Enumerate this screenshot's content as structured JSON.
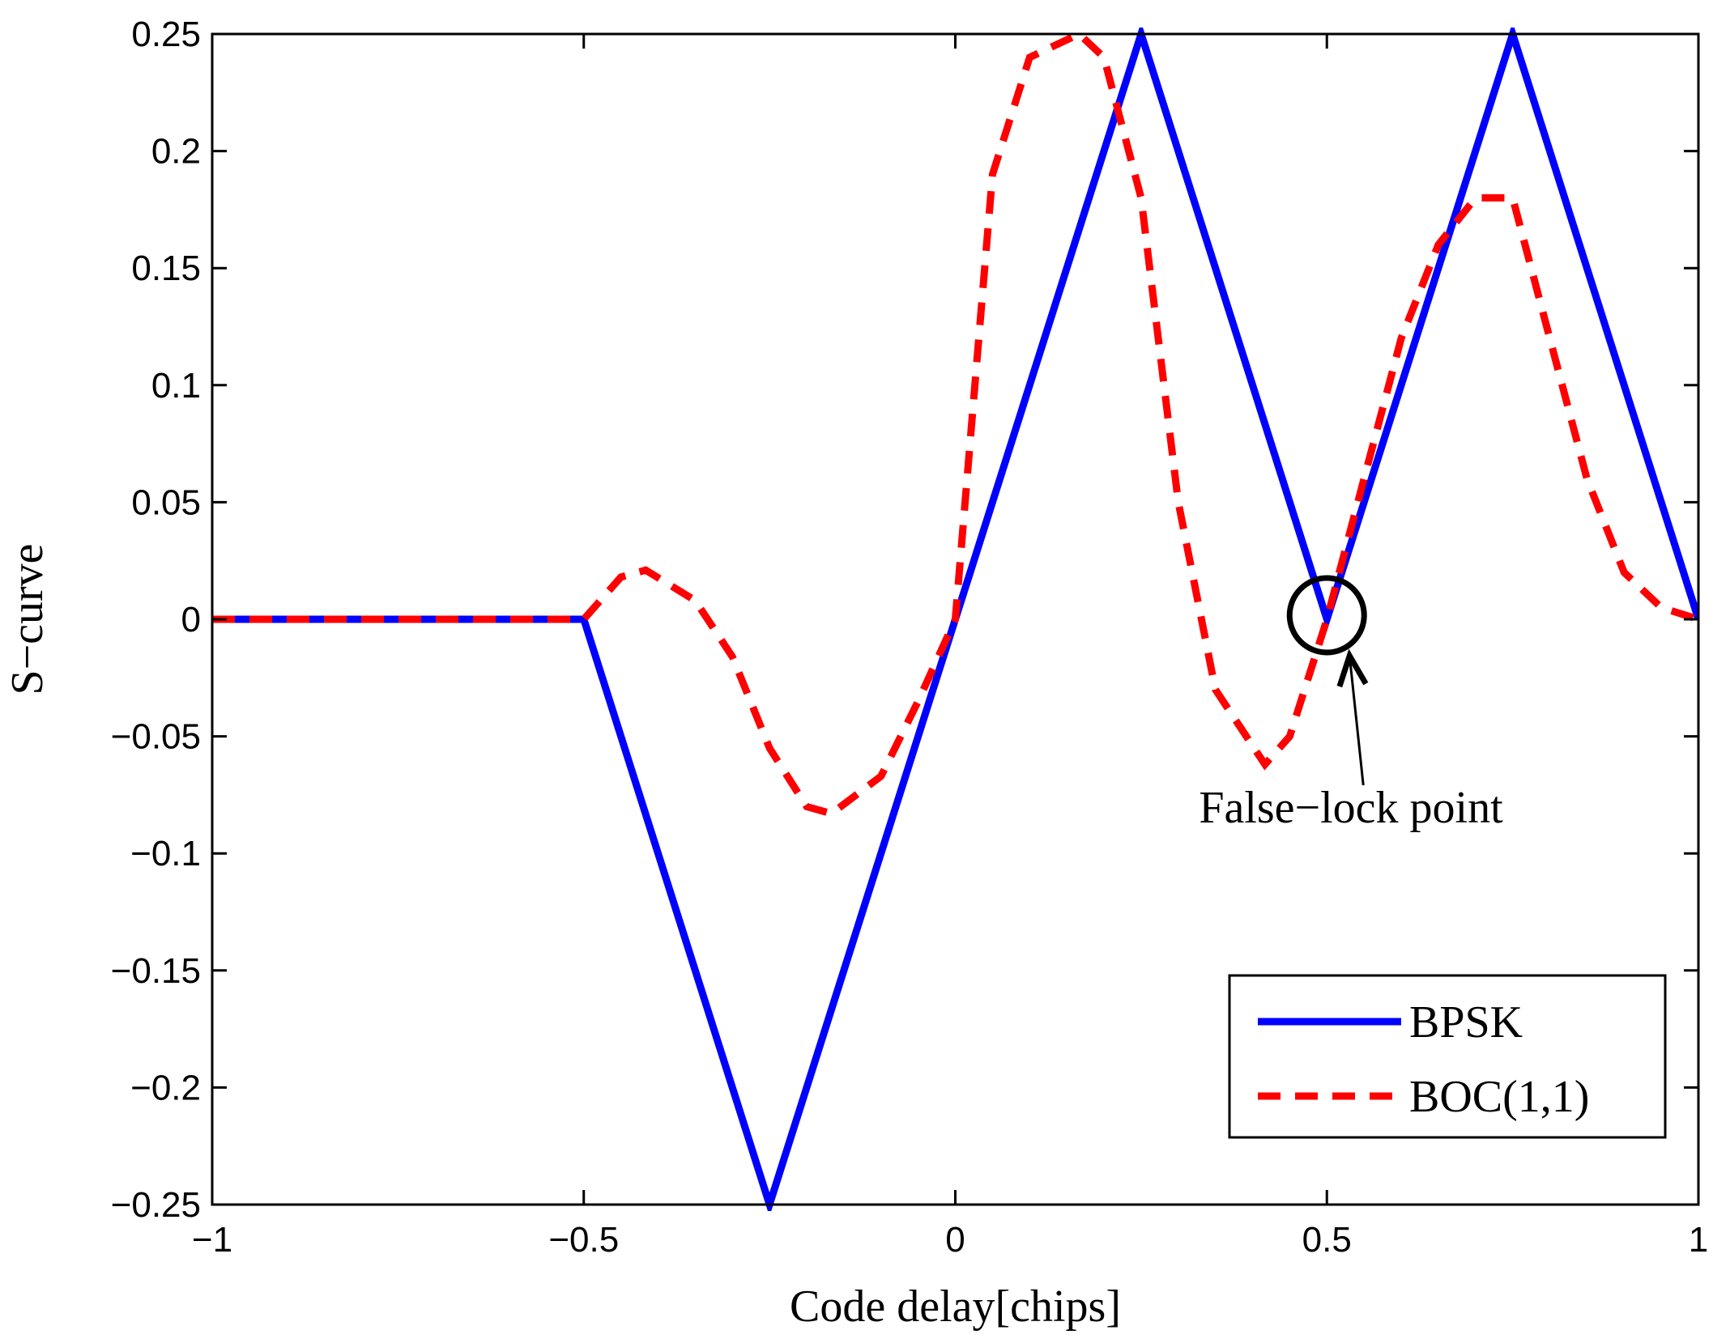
{
  "chart_data": {
    "type": "line",
    "title": "",
    "xlabel": "Code delay[chips]",
    "ylabel": "S−curve",
    "xlim": [
      -1,
      1
    ],
    "ylim": [
      -0.25,
      0.25
    ],
    "x_ticks": [
      -1,
      -0.5,
      0,
      0.5,
      1
    ],
    "x_tick_labels": [
      "−1",
      "−0.5",
      "0",
      "0.5",
      "1"
    ],
    "y_ticks": [
      -0.25,
      -0.2,
      -0.15,
      -0.1,
      -0.05,
      0,
      0.05,
      0.1,
      0.15,
      0.2,
      0.25
    ],
    "y_tick_labels": [
      "−0.25",
      "−0.2",
      "−0.15",
      "−0.1",
      "−0.05",
      "0",
      "0.05",
      "0.1",
      "0.15",
      "0.2",
      "0.25"
    ],
    "grid": false,
    "legend_position": "bottom-right",
    "series": [
      {
        "name": "BPSK",
        "color": "#0000ff",
        "style": "solid",
        "x": [
          -1,
          -0.5,
          -0.25,
          0,
          0.25,
          0.5,
          0.75,
          1
        ],
        "y": [
          0,
          0,
          -0.25,
          0,
          0.25,
          0,
          0.25,
          0
        ]
      },
      {
        "name": "BOC(1,1)",
        "color": "#ff0000",
        "style": "dashed",
        "x": [
          -1,
          -0.5,
          -0.45,
          -0.4167,
          -0.35,
          -0.3,
          -0.25,
          -0.2,
          -0.1667,
          -0.1,
          -0.05,
          0,
          0.05,
          0.1,
          0.1667,
          0.2,
          0.25,
          0.3,
          0.35,
          0.4167,
          0.45,
          0.5,
          0.55,
          0.6,
          0.65,
          0.7,
          0.75,
          0.8,
          0.85,
          0.9,
          0.95,
          1
        ],
        "y": [
          0,
          0,
          0.018,
          0.021,
          0.008,
          -0.016,
          -0.055,
          -0.08,
          -0.083,
          -0.067,
          -0.035,
          0,
          0.19,
          0.24,
          0.25,
          0.24,
          0.18,
          0.05,
          -0.03,
          -0.062,
          -0.05,
          0,
          0.06,
          0.12,
          0.16,
          0.18,
          0.18,
          0.12,
          0.06,
          0.02,
          0.005,
          0
        ]
      }
    ],
    "annotations": [
      {
        "text": "False−lock point",
        "target_x": 0.5,
        "target_y": 0
      }
    ]
  }
}
